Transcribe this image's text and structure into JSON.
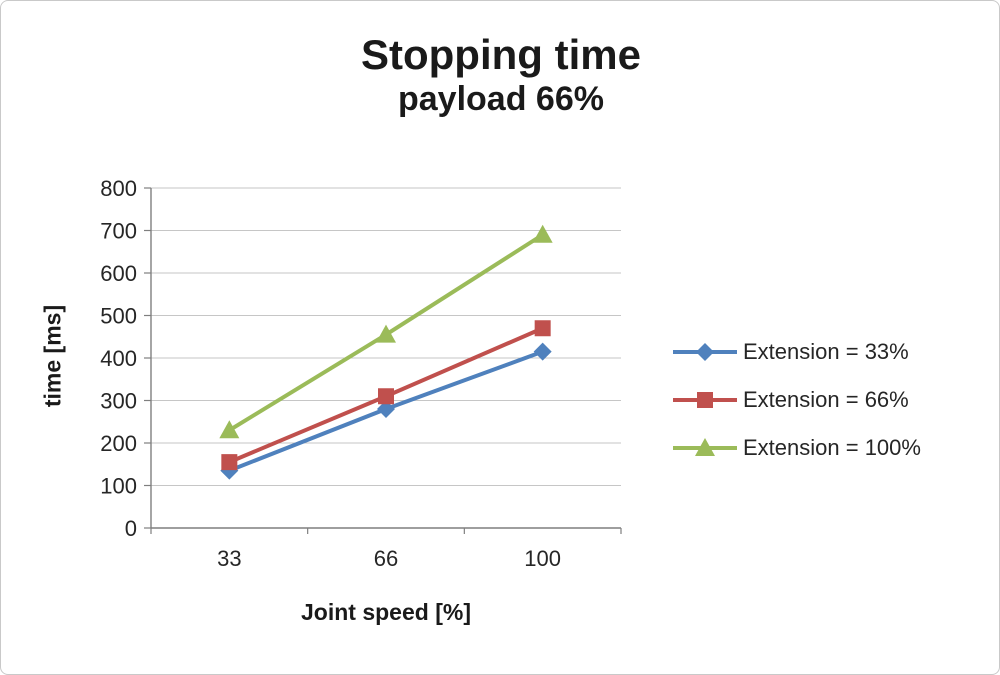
{
  "chart_data": {
    "type": "line",
    "title": "Stopping time",
    "subtitle": "payload 66%",
    "xlabel": "Joint speed [%]",
    "ylabel": "time [ms]",
    "categories": [
      "33",
      "66",
      "100"
    ],
    "ylim": [
      0,
      800
    ],
    "ytick_step": 100,
    "grid": true,
    "legend_position": "right",
    "series": [
      {
        "name": "Extension = 33%",
        "color": "#4f81bd",
        "marker": "diamond",
        "values": [
          135,
          280,
          415
        ]
      },
      {
        "name": "Extension = 66%",
        "color": "#c0504d",
        "marker": "square",
        "values": [
          155,
          310,
          470
        ]
      },
      {
        "name": "Extension = 100%",
        "color": "#9bbb59",
        "marker": "triangle",
        "values": [
          230,
          455,
          690
        ]
      }
    ]
  },
  "colors": {
    "gridline": "#c6c6c6",
    "axis": "#7f7f7f",
    "tick_text": "#262626"
  }
}
